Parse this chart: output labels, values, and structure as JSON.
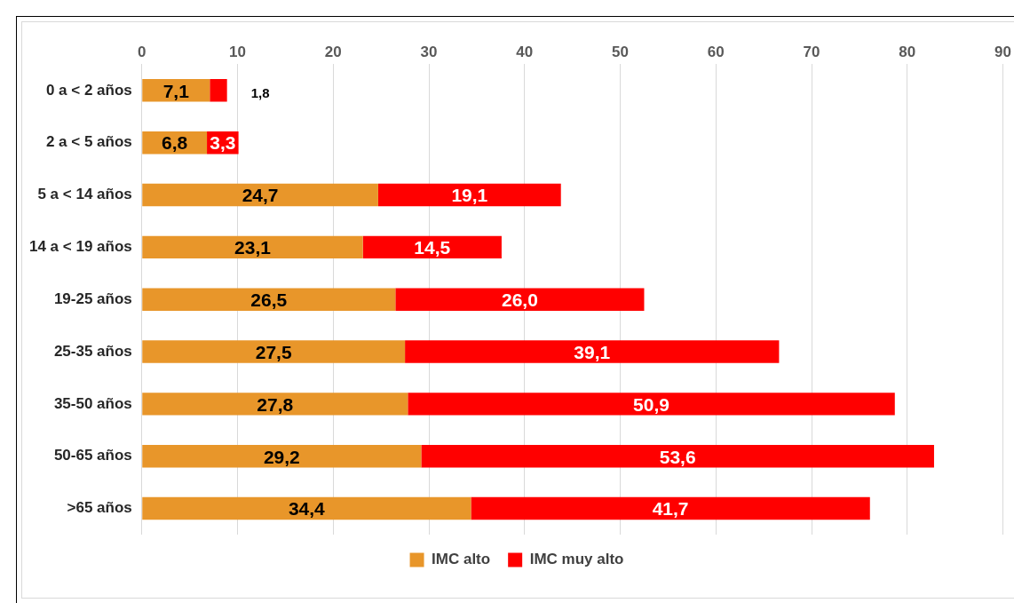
{
  "chart_data": {
    "type": "bar",
    "orientation": "horizontal",
    "stacked": true,
    "categories": [
      "0 a < 2 años",
      "2 a < 5 años",
      "5 a < 14 años",
      "14 a < 19 años",
      "19-25 años",
      "25-35 años",
      "35-50 años",
      "50-65 años",
      ">65 años"
    ],
    "series": [
      {
        "name": "IMC alto",
        "color": "#e8962a",
        "values": [
          7.1,
          6.8,
          24.7,
          23.1,
          26.5,
          27.5,
          27.8,
          29.2,
          34.4
        ],
        "value_labels": [
          "7,1",
          "6,8",
          "24,7",
          "23,1",
          "26,5",
          "27,5",
          "27,8",
          "29,2",
          "34,4"
        ]
      },
      {
        "name": "IMC muy alto",
        "color": "#ff0000",
        "values": [
          1.8,
          3.3,
          19.1,
          14.5,
          26.0,
          39.1,
          50.9,
          53.6,
          41.7
        ],
        "value_labels": [
          "1,8",
          "3,3",
          "19,1",
          "14,5",
          "26,0",
          "39,1",
          "50,9",
          "53,6",
          "41,7"
        ]
      }
    ],
    "xlim": [
      0,
      90
    ],
    "xticks": [
      0,
      10,
      20,
      30,
      40,
      50,
      60,
      70,
      80,
      90
    ],
    "grid": "x",
    "legend": "bottom"
  }
}
